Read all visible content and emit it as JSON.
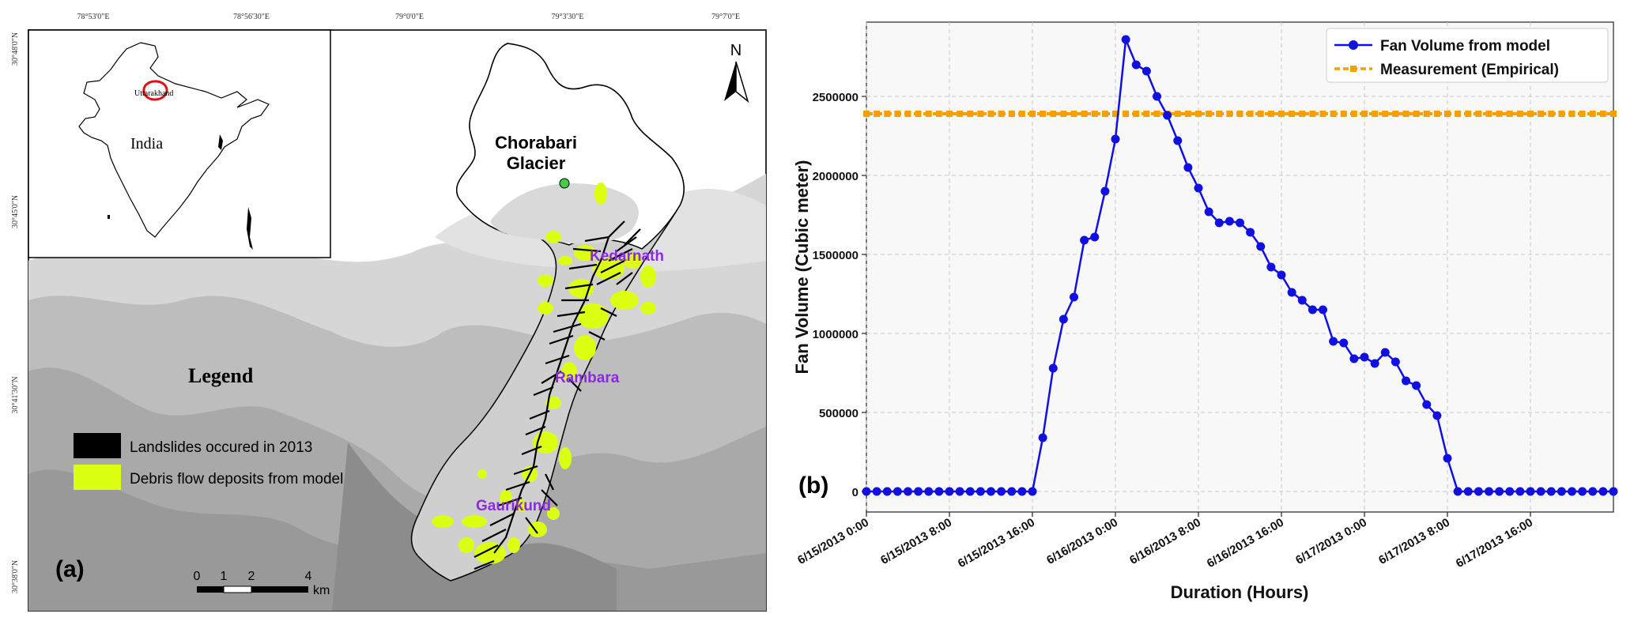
{
  "map": {
    "panel_label": "(a)",
    "coord_top": [
      "78°53'0\"E",
      "78°56'30\"E",
      "79°0'0\"E",
      "79°3'30\"E",
      "79°7'0\"E"
    ],
    "coord_left": [
      "30°48'0\"N",
      "30°45'0\"N",
      "30°41'30\"N",
      "30°38'0\"N"
    ],
    "north_label": "N",
    "inset": {
      "country": "India",
      "state": "Uttarakhand"
    },
    "places": {
      "glacier_line1": "Chorabari",
      "glacier_line2": "Glacier",
      "kedarnath": "Kedarnath",
      "rambara": "Rambara",
      "gaurikund": "Gaurikund"
    },
    "legend": {
      "title": "Legend",
      "landslides": "Landslides occured in 2013",
      "debris": "Debris flow deposits from model"
    },
    "scale": {
      "ticks": [
        "0",
        "1",
        "2",
        "4"
      ],
      "unit": "km"
    },
    "colors": {
      "landslide": "#000000",
      "debris": "#ddff11",
      "label_purple": "#8a2be2",
      "glacier_dot": "#44cc44"
    }
  },
  "chart_data": {
    "type": "line",
    "panel_label": "(b)",
    "xlabel": "Duration (Hours)",
    "ylabel": "Fan Volume (Cubic meter)",
    "x_tick_labels": [
      "6/15/2013 0:00",
      "6/15/2013 8:00",
      "6/15/2013 16:00",
      "6/16/2013 0:00",
      "6/16/2013 8:00",
      "6/16/2013 16:00",
      "6/17/2013 0:00",
      "6/17/2013 8:00",
      "6/17/2013 16:00"
    ],
    "x_tick_hours": [
      0,
      8,
      16,
      24,
      32,
      40,
      48,
      56,
      64
    ],
    "xlim_hours": [
      0,
      72
    ],
    "y_ticks": [
      0,
      500000,
      1000000,
      1500000,
      2000000,
      2500000
    ],
    "y_tick_labels": [
      "0",
      "500000",
      "1000000",
      "1500000",
      "2000000",
      "2500000"
    ],
    "ylim": [
      -130000,
      2970000
    ],
    "grid": true,
    "legend_position": "top-right",
    "series": [
      {
        "name": "Fan Volume from model",
        "color": "#1010e0",
        "style": "solid-circle",
        "x_hours": [
          0,
          1,
          2,
          3,
          4,
          5,
          6,
          7,
          8,
          9,
          10,
          11,
          12,
          13,
          14,
          15,
          16,
          17,
          18,
          19,
          20,
          21,
          22,
          23,
          24,
          25,
          26,
          27,
          28,
          29,
          30,
          31,
          32,
          33,
          34,
          35,
          36,
          37,
          38,
          39,
          40,
          41,
          42,
          43,
          44,
          45,
          46,
          47,
          48,
          49,
          50,
          51,
          52,
          53,
          54,
          55,
          56,
          57,
          58,
          59,
          60,
          61,
          62,
          63,
          64,
          65,
          66,
          67,
          68,
          69,
          70,
          71,
          72
        ],
        "values": [
          0,
          0,
          0,
          0,
          0,
          0,
          0,
          0,
          0,
          0,
          0,
          0,
          0,
          0,
          0,
          0,
          0,
          340000,
          780000,
          1090000,
          1230000,
          1590000,
          1610000,
          1900000,
          2230000,
          2860000,
          2700000,
          2660000,
          2500000,
          2380000,
          2220000,
          2050000,
          1920000,
          1770000,
          1700000,
          1710000,
          1700000,
          1640000,
          1550000,
          1420000,
          1370000,
          1260000,
          1210000,
          1150000,
          1150000,
          950000,
          940000,
          840000,
          850000,
          810000,
          880000,
          820000,
          700000,
          670000,
          550000,
          480000,
          210000,
          0,
          0,
          0,
          0,
          0,
          0,
          0,
          0,
          0,
          0,
          0,
          0,
          0,
          0,
          0,
          0
        ]
      },
      {
        "name": "Measurement (Empirical)",
        "color": "#f5a000",
        "style": "dashed-square",
        "value": 2390000
      }
    ]
  }
}
